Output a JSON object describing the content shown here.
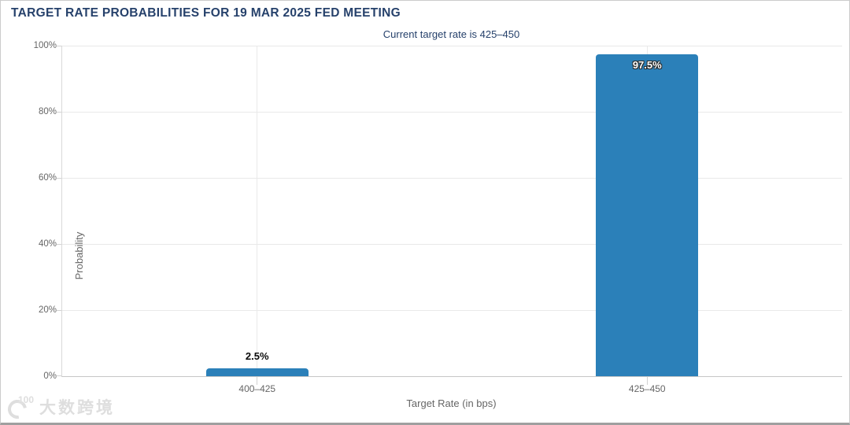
{
  "chart_data": {
    "type": "bar",
    "title": "TARGET RATE PROBABILITIES FOR 19 MAR 2025 FED MEETING",
    "subtitle": "Current target rate is 425–450",
    "categories": [
      "400–425",
      "425–450"
    ],
    "values": [
      2.5,
      97.5
    ],
    "value_labels": [
      "2.5%",
      "97.5%"
    ],
    "label_inside": [
      false,
      true
    ],
    "xlabel": "Target Rate (in bps)",
    "ylabel": "Probability",
    "ylim": [
      0,
      100
    ],
    "ytick_labels": [
      "0%",
      "20%",
      "40%",
      "60%",
      "80%",
      "100%"
    ],
    "grid": true,
    "legend": "none",
    "bar_color": "#2b80b9",
    "title_color": "#26416b",
    "axis_text_color": "#666666"
  },
  "watermark": {
    "logo_superscript": "100",
    "text": "大数跨境"
  }
}
